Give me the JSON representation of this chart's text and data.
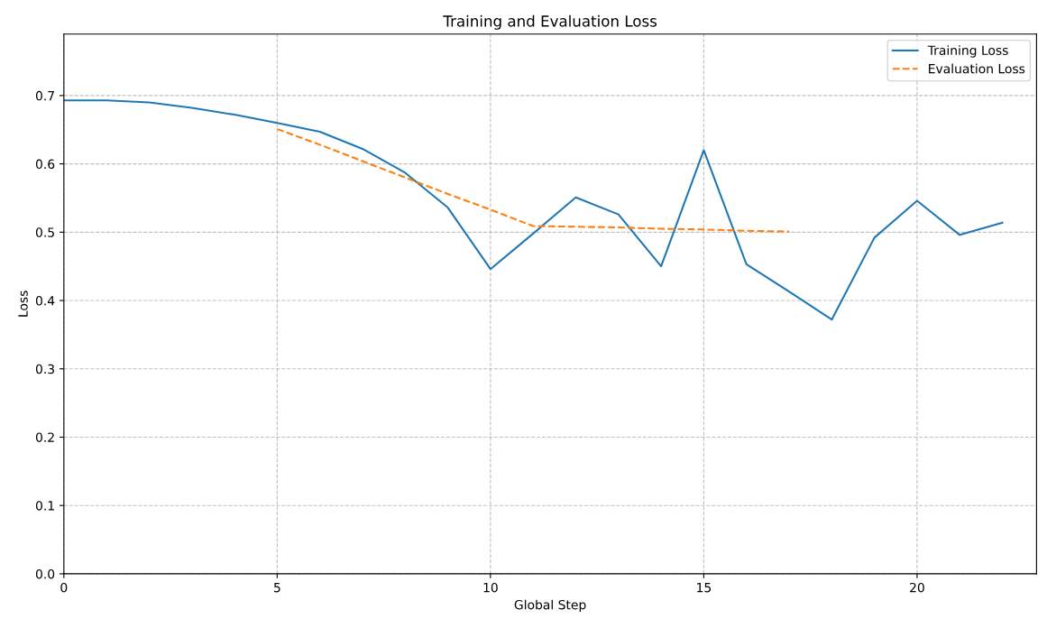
{
  "chart_data": {
    "type": "line",
    "title": "Training and Evaluation Loss",
    "xlabel": "Global Step",
    "ylabel": "Loss",
    "series": [
      {
        "name": "Training Loss",
        "color": "#1f77b4",
        "line_style": "solid",
        "x": [
          0,
          1,
          2,
          3,
          4,
          5,
          6,
          7,
          8,
          9,
          10,
          11,
          12,
          13,
          14,
          15,
          16,
          17,
          18,
          19,
          20,
          21,
          22
        ],
        "values": [
          0.693,
          0.693,
          0.69,
          0.682,
          0.672,
          0.66,
          0.647,
          0.622,
          0.587,
          0.536,
          0.446,
          0.498,
          0.551,
          0.526,
          0.45,
          0.62,
          0.453,
          0.413,
          0.372,
          0.492,
          0.546,
          0.496,
          0.514
        ]
      },
      {
        "name": "Evaluation Loss",
        "color": "#ff7f0e",
        "line_style": "dashed",
        "x": [
          5,
          6,
          7,
          8,
          9,
          10,
          11,
          12,
          13,
          14,
          15,
          16,
          17
        ],
        "values": [
          0.651,
          0.628,
          0.604,
          0.58,
          0.556,
          0.533,
          0.509,
          0.508,
          0.507,
          0.505,
          0.504,
          0.502,
          0.501
        ]
      }
    ],
    "xlim": [
      0,
      22.8
    ],
    "xticks": [
      0,
      5,
      10,
      15,
      20
    ],
    "ylim": [
      0,
      0.79
    ],
    "yticks": [
      {
        "value": 0,
        "label": "0.0"
      },
      0.1,
      0.2,
      0.3,
      0.4,
      0.5,
      0.6,
      0.7
    ],
    "grid": true,
    "legend": "top right",
    "marker": "none"
  }
}
